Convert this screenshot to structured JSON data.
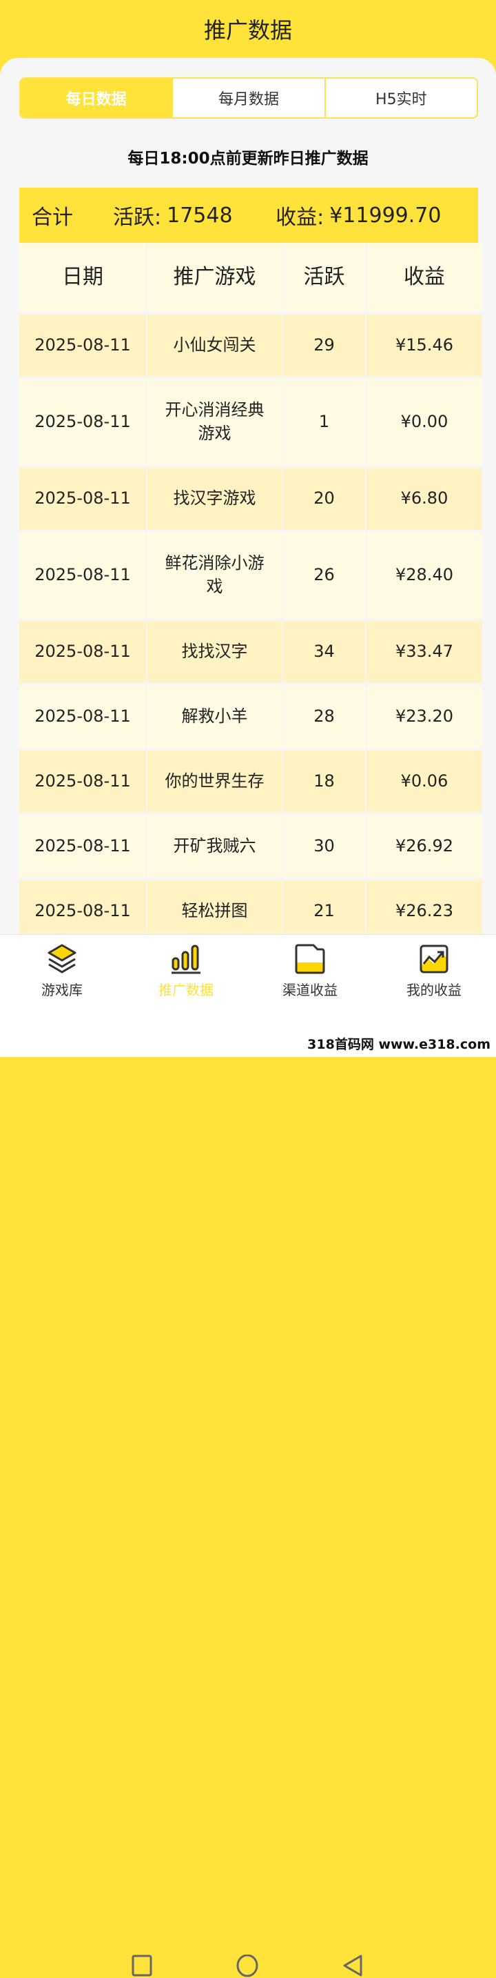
{
  "header": {
    "title": "推广数据"
  },
  "tabs": [
    {
      "label": "每日数据",
      "active": true
    },
    {
      "label": "每月数据",
      "active": false
    },
    {
      "label": "H5实时",
      "active": false
    }
  ],
  "notice": "每日18:00点前更新昨日推广数据",
  "summary": {
    "label": "合计",
    "active_label": "活跃:",
    "active_value": "17548",
    "income_label": "收益:",
    "income_value": "¥11999.70"
  },
  "table": {
    "headers": [
      "日期",
      "推广游戏",
      "活跃",
      "收益"
    ],
    "rows": [
      [
        "2025-08-11",
        "小仙女闯关",
        "29",
        "¥15.46"
      ],
      [
        "2025-08-11",
        "开心消消经典游戏",
        "1",
        "¥0.00"
      ],
      [
        "2025-08-11",
        "找汉字游戏",
        "20",
        "¥6.80"
      ],
      [
        "2025-08-11",
        "鲜花消除小游戏",
        "26",
        "¥28.40"
      ],
      [
        "2025-08-11",
        "找找汉字",
        "34",
        "¥33.47"
      ],
      [
        "2025-08-11",
        "解救小羊",
        "28",
        "¥23.20"
      ],
      [
        "2025-08-11",
        "你的世界生存",
        "18",
        "¥0.06"
      ],
      [
        "2025-08-11",
        "开矿我贼六",
        "30",
        "¥26.92"
      ],
      [
        "2025-08-11",
        "轻松拼图",
        "21",
        "¥26.23"
      ]
    ]
  },
  "nav": [
    {
      "label": "游戏库",
      "icon": "layers-icon"
    },
    {
      "label": "推广数据",
      "icon": "bar-chart-icon",
      "active": true
    },
    {
      "label": "渠道收益",
      "icon": "folder-icon"
    },
    {
      "label": "我的收益",
      "icon": "trend-chart-icon"
    }
  ],
  "watermark": "318首码网 www.e318.com",
  "colors": {
    "accent": "#ffe23a",
    "row_odd": "#fff3c4",
    "row_even": "#fffbe3"
  }
}
